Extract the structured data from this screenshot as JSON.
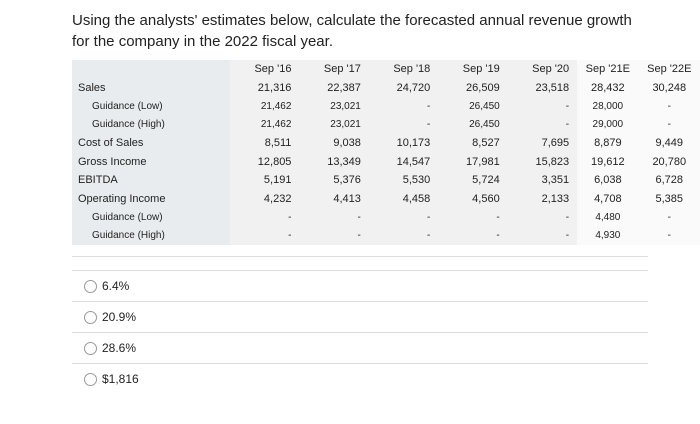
{
  "question": "Using the analysts' estimates below, calculate the forecasted annual revenue growth for the company in the 2022 fiscal year.",
  "table": {
    "columns": [
      "Sep '16",
      "Sep '17",
      "Sep '18",
      "Sep '19",
      "Sep '20",
      "Sep '21E",
      "Sep '22E"
    ],
    "rows": [
      {
        "label": "Sales",
        "indent": false,
        "cells": [
          "21,316",
          "22,387",
          "24,720",
          "26,509",
          "23,518",
          "28,432",
          "30,248"
        ]
      },
      {
        "label": "Guidance (Low)",
        "indent": true,
        "cells": [
          "21,462",
          "23,021",
          "-",
          "26,450",
          "-",
          "28,000",
          "-"
        ]
      },
      {
        "label": "Guidance (High)",
        "indent": true,
        "cells": [
          "21,462",
          "23,021",
          "-",
          "26,450",
          "-",
          "29,000",
          "-"
        ]
      },
      {
        "label": "Cost of Sales",
        "indent": false,
        "cells": [
          "8,511",
          "9,038",
          "10,173",
          "8,527",
          "7,695",
          "8,879",
          "9,449"
        ]
      },
      {
        "label": "Gross Income",
        "indent": false,
        "cells": [
          "12,805",
          "13,349",
          "14,547",
          "17,981",
          "15,823",
          "19,612",
          "20,780"
        ]
      },
      {
        "label": "EBITDA",
        "indent": false,
        "cells": [
          "5,191",
          "5,376",
          "5,530",
          "5,724",
          "3,351",
          "6,038",
          "6,728"
        ]
      },
      {
        "label": "Operating Income",
        "indent": false,
        "cells": [
          "4,232",
          "4,413",
          "4,458",
          "4,560",
          "2,133",
          "4,708",
          "5,385"
        ]
      },
      {
        "label": "Guidance (Low)",
        "indent": true,
        "cells": [
          "-",
          "-",
          "-",
          "-",
          "-",
          "4,480",
          "-"
        ]
      },
      {
        "label": "Guidance (High)",
        "indent": true,
        "cells": [
          "-",
          "-",
          "-",
          "-",
          "-",
          "4,930",
          "-"
        ]
      }
    ]
  },
  "options": [
    "6.4%",
    "20.9%",
    "28.6%",
    "$1,816"
  ]
}
